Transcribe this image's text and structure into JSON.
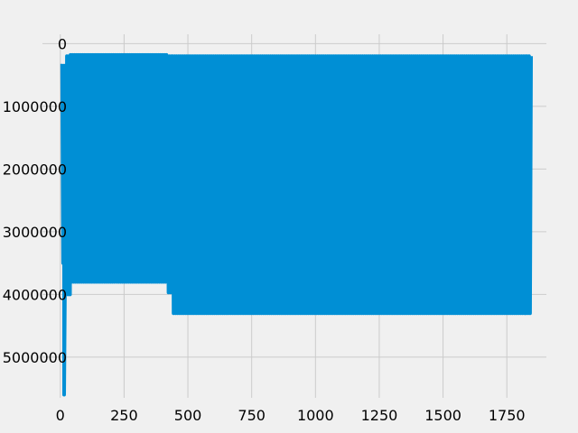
{
  "chart_data": {
    "type": "line",
    "title": "",
    "xlabel": "",
    "ylabel": "",
    "grid": true,
    "xlim": [
      -70,
      1905
    ],
    "ylim": [
      -5650000,
      150000
    ],
    "x_ticks": [
      0,
      250,
      500,
      750,
      1000,
      1250,
      1500,
      1750
    ],
    "x_tick_labels": [
      "0",
      "250",
      "500",
      "750",
      "1000",
      "1250",
      "1500",
      "1750"
    ],
    "y_ticks": [
      0,
      -1000000,
      -2000000,
      -3000000,
      -4000000,
      -5000000
    ],
    "y_tick_labels": [
      "0",
      "1000000",
      "2000000",
      "3000000",
      "4000000",
      "5000000"
    ],
    "series": [
      {
        "color": "#008fd5",
        "segments": [
          {
            "x_start": 0,
            "x_end": 7,
            "upper": -350000,
            "lower": -350000
          },
          {
            "x_start": 7,
            "x_end": 15,
            "upper": -350000,
            "lower": -3500000
          },
          {
            "x_start": 15,
            "x_end": 22,
            "upper": -3500000,
            "lower": -5600000
          },
          {
            "x_start": 22,
            "x_end": 40,
            "upper": -200000,
            "lower": -4000000
          },
          {
            "x_start": 40,
            "x_end": 420,
            "upper": -180000,
            "lower": -3800000
          },
          {
            "x_start": 420,
            "x_end": 440,
            "upper": -200000,
            "lower": -3970000
          },
          {
            "x_start": 440,
            "x_end": 1825,
            "upper": -200000,
            "lower": -4300000
          },
          {
            "x_start": 1825,
            "x_end": 1845,
            "upper": -200000,
            "lower": -4300000
          }
        ],
        "oscillation_period": 8
      }
    ]
  }
}
